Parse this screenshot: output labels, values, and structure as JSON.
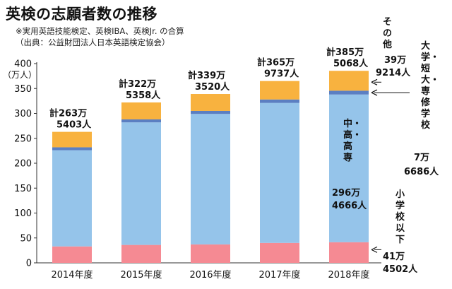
{
  "title": "英検の志願者数の推移",
  "notes": [
    "※実用英語技能検定、英検IBA、英検Jr. の合算",
    "（出典：公益財団法人日本英語検定協会）"
  ],
  "chart_data": {
    "type": "bar",
    "stacked": true,
    "title": "英検の志願者数の推移",
    "ylabel": "（万人）",
    "ylim": [
      0,
      400
    ],
    "yticks": [
      0,
      50,
      100,
      150,
      200,
      250,
      300,
      350,
      400
    ],
    "categories": [
      "2014年度",
      "2015年度",
      "2016年度",
      "2017年度",
      "2018年度"
    ],
    "series": [
      {
        "name": "小学校以下",
        "color": "#f58a93",
        "values": [
          33,
          36,
          37,
          40,
          41.4502
        ]
      },
      {
        "name": "中・高・高専",
        "color": "#95c4ea",
        "values": [
          193,
          246,
          262,
          281,
          296.4666
        ]
      },
      {
        "name": "大学・短大・専修学校",
        "color": "#5b7fc2",
        "values": [
          6,
          6,
          6,
          7,
          7.6686
        ]
      },
      {
        "name": "その他",
        "color": "#f8b23f",
        "values": [
          31,
          34,
          34,
          37,
          39.9214
        ]
      }
    ],
    "totals": [
      {
        "line1": "計263万",
        "line2": "5403人"
      },
      {
        "line1": "計322万",
        "line2": "5358人"
      },
      {
        "line1": "計339万",
        "line2": "3520人"
      },
      {
        "line1": "計365万",
        "line2": "9737人"
      },
      {
        "line1": "計385万",
        "line2": "5068人"
      }
    ],
    "annotations": {
      "sonota_name": "その他",
      "sonota_value": [
        "39万",
        "9214人"
      ],
      "university_name": "大学・短大・専修学校",
      "university_value": [
        "7万",
        "6686人"
      ],
      "middle_name": "中・高・高専",
      "middle_value": [
        "296万",
        "4666人"
      ],
      "elementary_name": "小学校以下",
      "elementary_value": [
        "41万",
        "4502人"
      ]
    }
  }
}
